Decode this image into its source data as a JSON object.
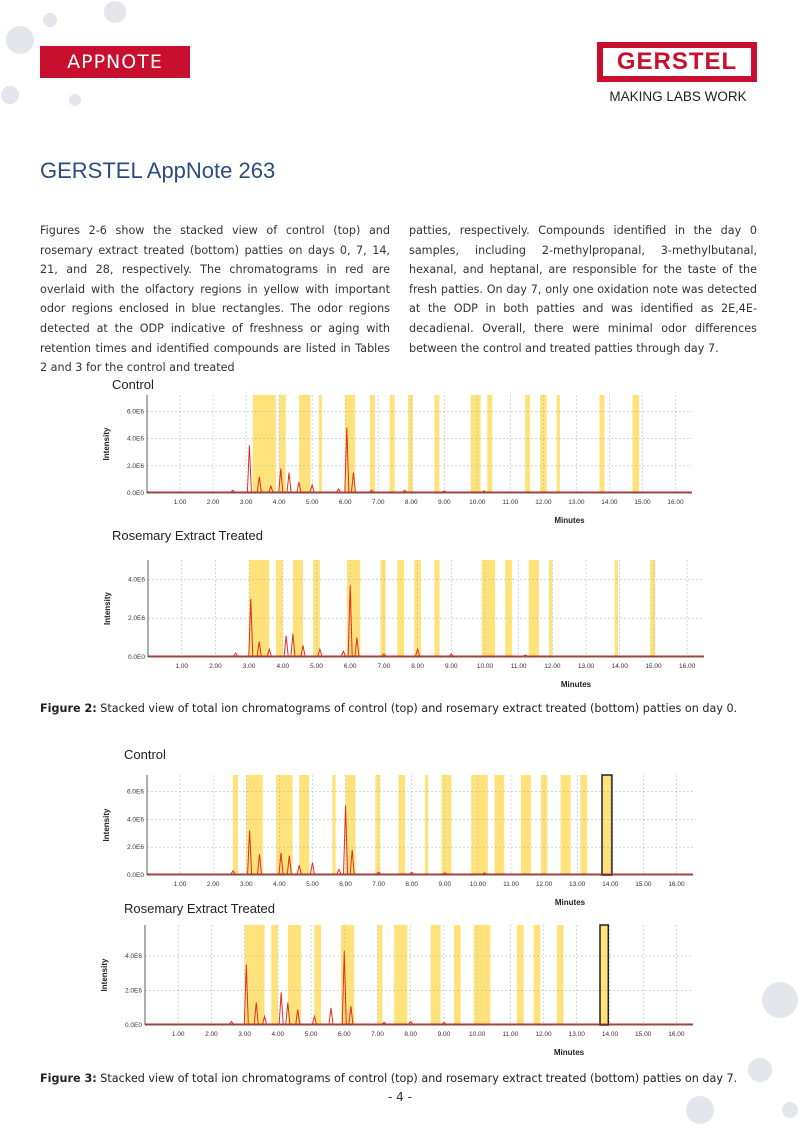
{
  "header": {
    "badge": "APPNOTE",
    "logo": "GERSTEL",
    "tagline": "MAKING LABS WORK"
  },
  "title": "GERSTEL AppNote 263",
  "body": {
    "columns": [
      "Figures 2-6 show the stacked view of control (top) and rosemary extract treated (bottom) patties on days 0, 7, 14, 21, and 28, respectively. The chromatograms in red are overlaid with the olfactory regions in yellow with important odor regions enclosed in blue rectangles. The odor regions detected at the ODP indicative of freshness or aging with retention times and identified compounds are listed in Tables 2 and 3 for the control and treated",
      "patties, respectively. Compounds identified in the day 0 samples, including 2-methylpropanal, 3-methylbutanal, hexanal, and heptanal, are responsible for the taste of the fresh patties. On day 7, only one oxidation note was detected at the ODP in both patties and was identified as 2E,4E-decadienal. Overall, there were minimal odor differences between the control and treated patties through day 7."
    ]
  },
  "figures": [
    {
      "caption_label": "Figure 2:",
      "caption": "Stacked view of total ion chromatograms of control (top) and rosemary extract treated (bottom) patties on day 0.",
      "panels": [
        {
          "title": "Control",
          "xlabel": "Minutes",
          "ylabel": "Intensity",
          "xlim": [
            0,
            16.5
          ],
          "ylim": [
            0,
            7200000
          ],
          "xticks": [
            {
              "value": 1,
              "label": "1.00"
            },
            {
              "value": 2,
              "label": "2.00"
            },
            {
              "value": 3,
              "label": "3.00"
            },
            {
              "value": 4,
              "label": "4.00"
            },
            {
              "value": 5,
              "label": "5.00"
            },
            {
              "value": 6,
              "label": "6.00"
            },
            {
              "value": 7,
              "label": "7.00"
            },
            {
              "value": 8,
              "label": "8.00"
            },
            {
              "value": 9,
              "label": "9.00"
            },
            {
              "value": 10,
              "label": "10.00"
            },
            {
              "value": 11,
              "label": "11.00"
            },
            {
              "value": 12,
              "label": "12.00"
            },
            {
              "value": 13,
              "label": "13.00"
            },
            {
              "value": 14,
              "label": "14.00"
            },
            {
              "value": 15,
              "label": "15.00"
            },
            {
              "value": 16,
              "label": "16.00"
            }
          ],
          "yticks": [
            {
              "value": 0,
              "label": "0.0E0"
            },
            {
              "value": 2000000,
              "label": "2.0E6"
            },
            {
              "value": 4000000,
              "label": "4.0E6"
            },
            {
              "value": 6000000,
              "label": "6.0E6"
            }
          ],
          "regions": [
            [
              3.2,
              3.9
            ],
            [
              4.0,
              4.2
            ],
            [
              4.6,
              4.95
            ],
            [
              5.2,
              5.3
            ],
            [
              6.0,
              6.3
            ],
            [
              6.75,
              6.9
            ],
            [
              7.35,
              7.5
            ],
            [
              7.9,
              8.05
            ],
            [
              8.7,
              8.85
            ],
            [
              9.8,
              10.1
            ],
            [
              10.3,
              10.45
            ],
            [
              11.45,
              11.6
            ],
            [
              11.9,
              12.1
            ],
            [
              12.4,
              12.5
            ],
            [
              13.7,
              13.85
            ],
            [
              14.7,
              14.9
            ]
          ],
          "peaks": {
            "x": [
              2.6,
              3.1,
              3.4,
              3.75,
              4.05,
              4.3,
              4.6,
              5.0,
              5.8,
              6.05,
              6.25,
              6.8,
              7.8,
              9.0,
              10.2
            ],
            "values": [
              200000,
              3500000,
              1200000,
              500000,
              1800000,
              1500000,
              800000,
              600000,
              300000,
              4800000,
              1500000,
              200000,
              200000,
              150000,
              150000
            ]
          }
        },
        {
          "title": "Rosemary Extract Treated",
          "xlabel": "Minutes",
          "ylabel": "Intensity",
          "xlim": [
            0,
            16.5
          ],
          "ylim": [
            0,
            5000000
          ],
          "xticks": [
            {
              "value": 1,
              "label": "1.00"
            },
            {
              "value": 2,
              "label": "2.00"
            },
            {
              "value": 3,
              "label": "3.00"
            },
            {
              "value": 4,
              "label": "4.00"
            },
            {
              "value": 5,
              "label": "5.00"
            },
            {
              "value": 6,
              "label": "6.00"
            },
            {
              "value": 7,
              "label": "7.00"
            },
            {
              "value": 8,
              "label": "8.00"
            },
            {
              "value": 9,
              "label": "9.00"
            },
            {
              "value": 10,
              "label": "10.00"
            },
            {
              "value": 11,
              "label": "11.00"
            },
            {
              "value": 12,
              "label": "12.00"
            },
            {
              "value": 13,
              "label": "13.00"
            },
            {
              "value": 14,
              "label": "14.00"
            },
            {
              "value": 15,
              "label": "15.00"
            },
            {
              "value": 16,
              "label": "16.00"
            }
          ],
          "yticks": [
            {
              "value": 0,
              "label": "0.0E0"
            },
            {
              "value": 2000000,
              "label": "2.0E6"
            },
            {
              "value": 4000000,
              "label": "4.0E6"
            }
          ],
          "regions": [
            [
              3.0,
              3.6
            ],
            [
              3.8,
              4.0
            ],
            [
              4.3,
              4.6
            ],
            [
              4.9,
              5.1
            ],
            [
              5.9,
              6.3
            ],
            [
              6.9,
              7.05
            ],
            [
              7.4,
              7.6
            ],
            [
              7.9,
              8.1
            ],
            [
              8.5,
              8.65
            ],
            [
              9.9,
              10.3
            ],
            [
              10.6,
              10.8
            ],
            [
              11.3,
              11.6
            ],
            [
              11.9,
              12.0
            ],
            [
              13.85,
              13.95
            ],
            [
              14.9,
              15.05
            ]
          ],
          "peaks": {
            "x": [
              2.6,
              3.05,
              3.3,
              3.6,
              4.1,
              4.3,
              4.6,
              5.1,
              5.8,
              6.0,
              6.2,
              7.0,
              8.0,
              9.0,
              11.2
            ],
            "values": [
              200000,
              3000000,
              800000,
              400000,
              1100000,
              1200000,
              600000,
              400000,
              300000,
              3700000,
              1000000,
              150000,
              400000,
              150000,
              100000
            ]
          }
        }
      ]
    },
    {
      "caption_label": "Figure 3:",
      "caption": "Stacked view of total ion chromatograms of control (top) and rosemary extract treated (bottom) patties on day 7.",
      "panels": [
        {
          "title": "Control",
          "xlabel": "Minutes",
          "ylabel": "Intensity",
          "xlim": [
            0,
            16.5
          ],
          "ylim": [
            0,
            7200000
          ],
          "xticks": [
            {
              "value": 1,
              "label": "1.00"
            },
            {
              "value": 2,
              "label": "2.00"
            },
            {
              "value": 3,
              "label": "3.00"
            },
            {
              "value": 4,
              "label": "4.00"
            },
            {
              "value": 5,
              "label": "5.00"
            },
            {
              "value": 6,
              "label": "6.00"
            },
            {
              "value": 7,
              "label": "7.00"
            },
            {
              "value": 8,
              "label": "8.00"
            },
            {
              "value": 9,
              "label": "9.00"
            },
            {
              "value": 10,
              "label": "10.00"
            },
            {
              "value": 11,
              "label": "11.00"
            },
            {
              "value": 12,
              "label": "12.00"
            },
            {
              "value": 13,
              "label": "13.00"
            },
            {
              "value": 14,
              "label": "14.00"
            },
            {
              "value": 15,
              "label": "15.00"
            },
            {
              "value": 16,
              "label": "16.00"
            }
          ],
          "yticks": [
            {
              "value": 0,
              "label": "0.0E0"
            },
            {
              "value": 2000000,
              "label": "2.0E6"
            },
            {
              "value": 4000000,
              "label": "4.0E6"
            },
            {
              "value": 6000000,
              "label": "6.0E6"
            }
          ],
          "regions": [
            [
              2.6,
              2.75
            ],
            [
              3.0,
              3.5
            ],
            [
              3.9,
              4.4
            ],
            [
              4.6,
              4.9
            ],
            [
              5.6,
              5.7
            ],
            [
              6.0,
              6.3
            ],
            [
              6.9,
              7.05
            ],
            [
              7.6,
              7.8
            ],
            [
              8.4,
              8.5
            ],
            [
              8.9,
              9.2
            ],
            [
              9.8,
              10.3
            ],
            [
              10.5,
              10.8
            ],
            [
              11.3,
              11.6
            ],
            [
              11.9,
              12.1
            ],
            [
              12.5,
              12.8
            ],
            [
              13.1,
              13.3
            ],
            [
              13.75,
              14.05
            ]
          ],
          "highlight": [
            13.75,
            14.05
          ],
          "peaks": {
            "x": [
              2.6,
              3.1,
              3.4,
              4.05,
              4.3,
              4.6,
              5.0,
              5.8,
              6.0,
              6.2,
              7.0,
              8.0,
              9.0,
              10.2
            ],
            "values": [
              300000,
              3200000,
              1500000,
              1600000,
              1400000,
              700000,
              900000,
              400000,
              5000000,
              1800000,
              200000,
              200000,
              150000,
              150000
            ]
          }
        },
        {
          "title": "Rosemary Extract Treated",
          "xlabel": "Minutes",
          "ylabel": "Intensity",
          "xlim": [
            0,
            16.5
          ],
          "ylim": [
            0,
            5800000
          ],
          "xticks": [
            {
              "value": 1,
              "label": "1.00"
            },
            {
              "value": 2,
              "label": "2.00"
            },
            {
              "value": 3,
              "label": "3.00"
            },
            {
              "value": 4,
              "label": "4.00"
            },
            {
              "value": 5,
              "label": "5.00"
            },
            {
              "value": 6,
              "label": "6.00"
            },
            {
              "value": 7,
              "label": "7.00"
            },
            {
              "value": 8,
              "label": "8.00"
            },
            {
              "value": 9,
              "label": "9.00"
            },
            {
              "value": 10,
              "label": "10.00"
            },
            {
              "value": 11,
              "label": "11.00"
            },
            {
              "value": 12,
              "label": "12.00"
            },
            {
              "value": 13,
              "label": "13.00"
            },
            {
              "value": 14,
              "label": "14.00"
            },
            {
              "value": 15,
              "label": "15.00"
            },
            {
              "value": 16,
              "label": "16.00"
            }
          ],
          "yticks": [
            {
              "value": 0,
              "label": "0.0E0"
            },
            {
              "value": 2000000,
              "label": "2.0E6"
            },
            {
              "value": 4000000,
              "label": "4.0E6"
            }
          ],
          "regions": [
            [
              3.0,
              3.6
            ],
            [
              3.8,
              4.0
            ],
            [
              4.3,
              4.7
            ],
            [
              5.1,
              5.3
            ],
            [
              5.9,
              6.3
            ],
            [
              7.0,
              7.15
            ],
            [
              7.5,
              7.9
            ],
            [
              8.6,
              8.9
            ],
            [
              9.3,
              9.5
            ],
            [
              9.9,
              10.4
            ],
            [
              11.2,
              11.4
            ],
            [
              11.7,
              11.9
            ],
            [
              12.4,
              12.6
            ],
            [
              13.7,
              13.95
            ]
          ],
          "highlight": [
            13.7,
            13.95
          ],
          "peaks": {
            "x": [
              2.6,
              3.05,
              3.35,
              3.6,
              4.1,
              4.3,
              4.6,
              5.1,
              5.6,
              6.0,
              6.2,
              7.2,
              8.0,
              9.0
            ],
            "values": [
              200000,
              3500000,
              1300000,
              500000,
              1900000,
              1300000,
              900000,
              500000,
              1000000,
              4300000,
              1100000,
              150000,
              200000,
              150000
            ]
          }
        }
      ]
    }
  ],
  "page_number": "- 4 -"
}
